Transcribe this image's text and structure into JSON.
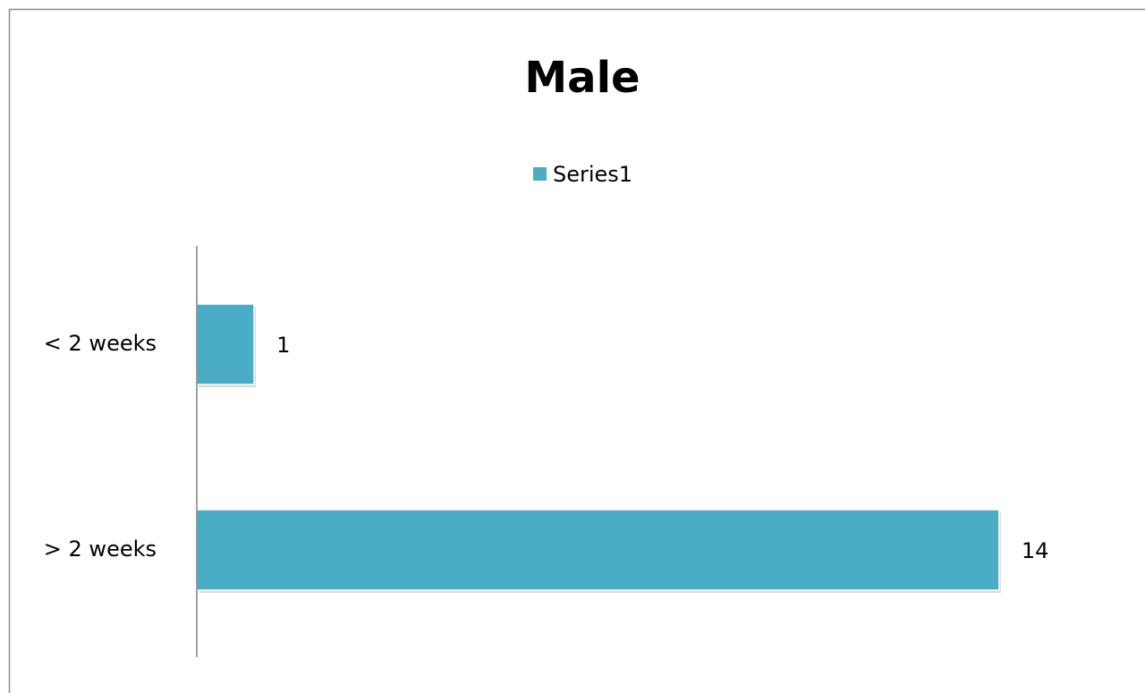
{
  "chart_data": {
    "type": "bar",
    "orientation": "horizontal",
    "title": "Male",
    "categories": [
      "< 2 weeks",
      "> 2 weeks"
    ],
    "series": [
      {
        "name": "Series1",
        "color": "#4bacc6",
        "values": [
          1,
          14
        ]
      }
    ],
    "xlim": [
      0,
      16
    ],
    "legend": "top",
    "data_labels": true
  }
}
